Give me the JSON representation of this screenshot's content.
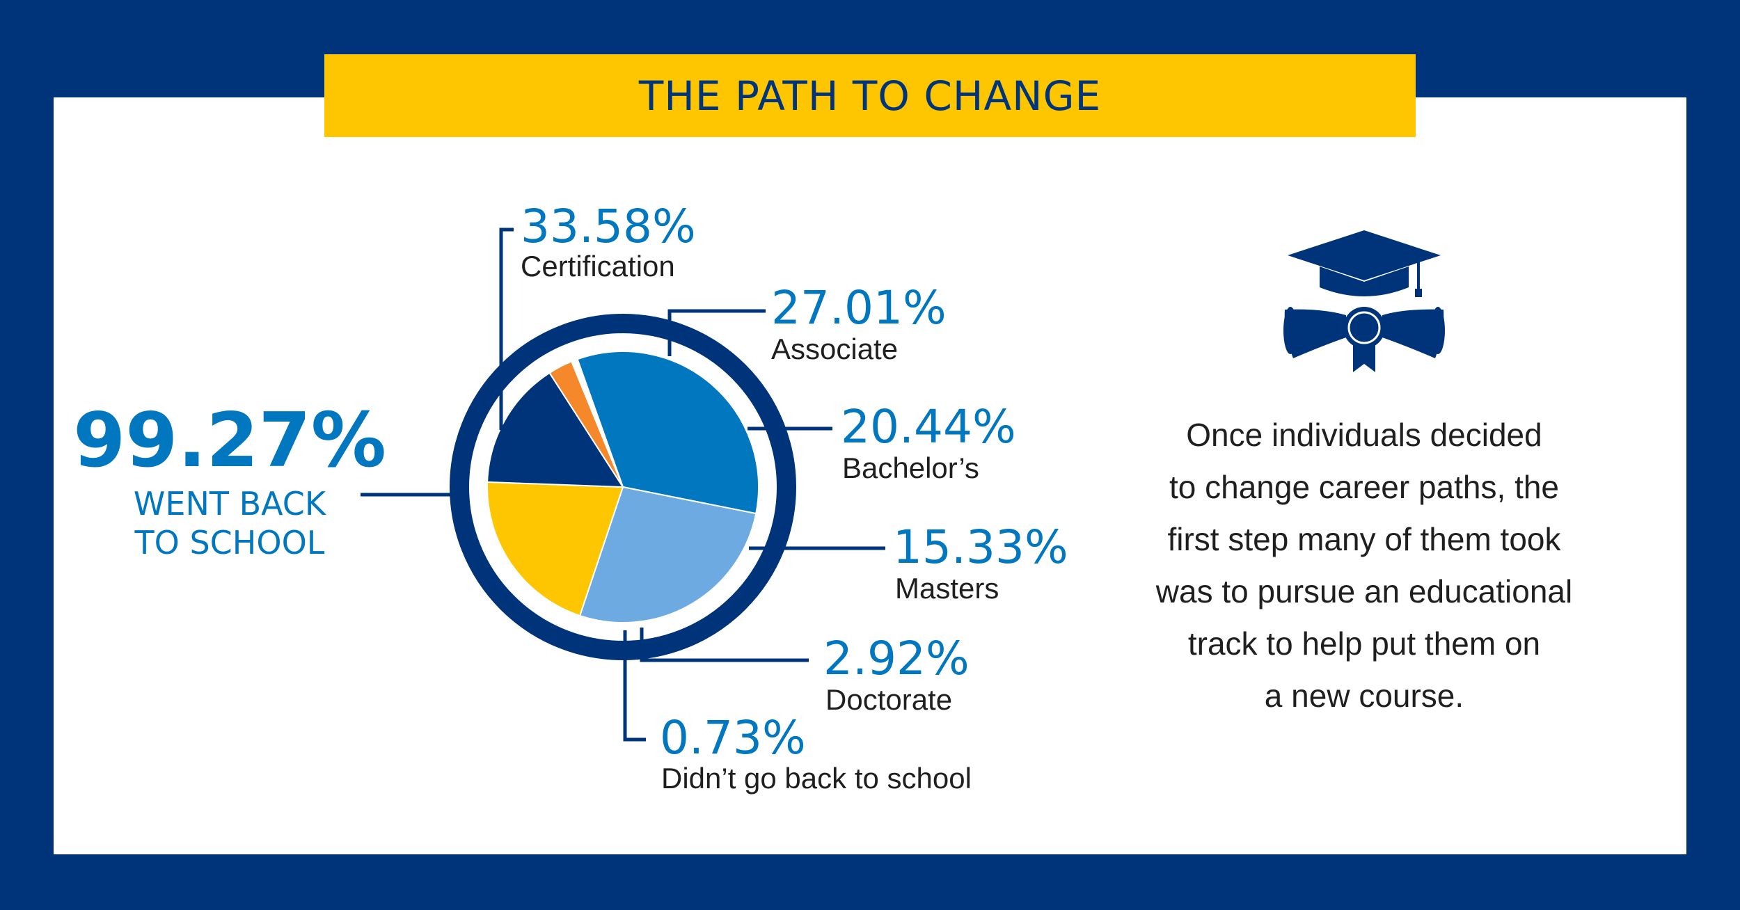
{
  "title": "THE PATH TO CHANGE",
  "headline": {
    "value": "99.27%",
    "label_line1": "WENT BACK",
    "label_line2": "TO SCHOOL"
  },
  "description_lines": [
    "Once individuals decided",
    "to change career paths, the",
    "first step many of them took",
    "was to pursue an educational",
    "track to help put them on",
    "a new course."
  ],
  "icons": {
    "decoration": "graduation-cap-diploma-icon"
  },
  "colors": {
    "navy": "#00347a",
    "yellow": "#fdc600",
    "light_blue": "#6caae1",
    "mid_blue": "#0077bf",
    "orange": "#f5882a",
    "white": "#ffffff"
  },
  "chart_data": {
    "type": "pie",
    "title": "",
    "slices": [
      {
        "label": "Certification",
        "value": 33.58,
        "display": "33.58%",
        "color": "#0077bf"
      },
      {
        "label": "Associate",
        "value": 27.01,
        "display": "27.01%",
        "color": "#6caae1"
      },
      {
        "label": "Bachelor’s",
        "value": 20.44,
        "display": "20.44%",
        "color": "#fdc600"
      },
      {
        "label": "Masters",
        "value": 15.33,
        "display": "15.33%",
        "color": "#00347a"
      },
      {
        "label": "Doctorate",
        "value": 2.92,
        "display": "2.92%",
        "color": "#f5882a"
      },
      {
        "label": "Didn’t go back to school",
        "value": 0.73,
        "display": "0.73%",
        "color": "#ffffff"
      }
    ]
  }
}
